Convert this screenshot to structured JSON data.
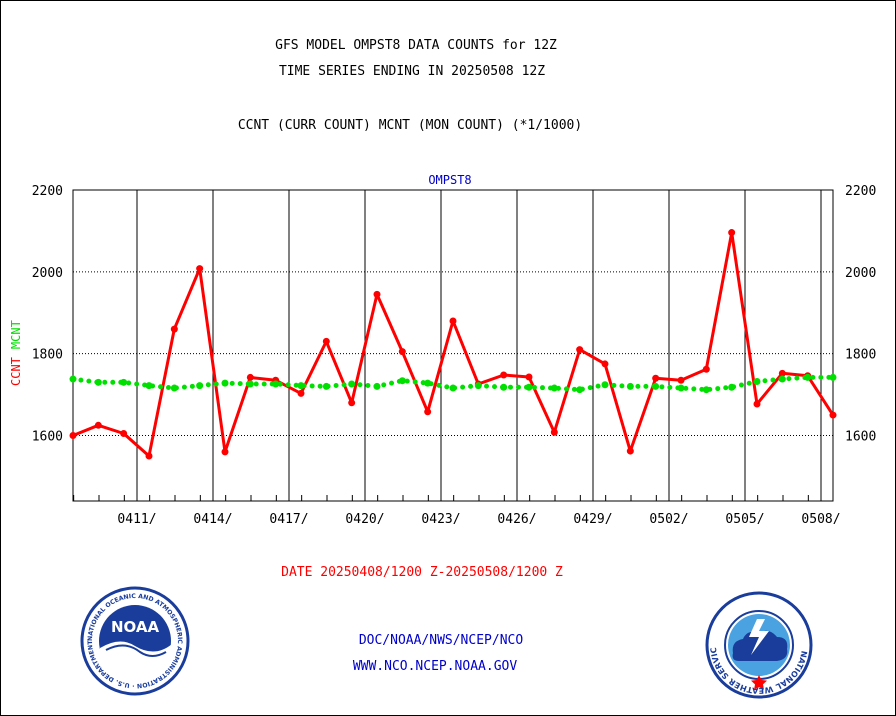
{
  "header": {
    "title_line1": "GFS MODEL OMPST8 DATA COUNTS for 12Z",
    "title_line2": "TIME SERIES ENDING IN 20250508 12Z",
    "subtitle": "CCNT (CURR COUNT) MCNT (MON COUNT) (*1/1000)"
  },
  "footer": {
    "date_range": "DATE 20250408/1200 Z-20250508/1200 Z",
    "org_line": "DOC/NOAA/NWS/NCEP/NCO",
    "url_line": "WWW.NCO.NCEP.NOAA.GOV"
  },
  "logos": {
    "noaa": {
      "center_text": "NOAA",
      "ring_text": "NATIONAL OCEANIC AND ATMOSPHERIC ADMINISTRATION · U.S. DEPARTMENT OF COMMERCE ·"
    },
    "nws": {
      "ring_text": "NATIONAL WEATHER SERVICE"
    }
  },
  "colors": {
    "ccnt": "#ff0000",
    "mcnt": "#00e000",
    "dataset_label": "#0000cc",
    "footer_text": "#0000cc",
    "date_text": "#ff0000"
  },
  "chart_data": {
    "type": "line",
    "title": "OMPST8",
    "ylabel_left": [
      "CCNT",
      "MCNT"
    ],
    "ylim": [
      1440,
      2200
    ],
    "yticks": [
      1600,
      1800,
      2000,
      2200
    ],
    "xlim": [
      0,
      30
    ],
    "xticks": [
      {
        "x": 3,
        "label": "0411/"
      },
      {
        "x": 6,
        "label": "0414/"
      },
      {
        "x": 9,
        "label": "0417/"
      },
      {
        "x": 12,
        "label": "0420/"
      },
      {
        "x": 15,
        "label": "0423/"
      },
      {
        "x": 18,
        "label": "0426/"
      },
      {
        "x": 21,
        "label": "0429/"
      },
      {
        "x": 24,
        "label": "0502/"
      },
      {
        "x": 27,
        "label": "0505/"
      },
      {
        "x": 30,
        "label": "0508/"
      }
    ],
    "grid": true,
    "series": [
      {
        "name": "CCNT",
        "style": "solid",
        "values": [
          1600,
          1625,
          1605,
          1550,
          1860,
          2008,
          1560,
          1742,
          1735,
          1703,
          1830,
          1680,
          1945,
          1805,
          1658,
          1880,
          1726,
          1748,
          1743,
          1608,
          1810,
          1775,
          1562,
          1740,
          1735,
          1762,
          2096,
          1677,
          1752,
          1746,
          1650
        ]
      },
      {
        "name": "MCNT",
        "style": "dotted",
        "values": [
          1738,
          1730,
          1730,
          1722,
          1716,
          1722,
          1728,
          1726,
          1726,
          1722,
          1720,
          1726,
          1720,
          1734,
          1728,
          1716,
          1722,
          1718,
          1718,
          1716,
          1712,
          1724,
          1720,
          1720,
          1716,
          1712,
          1718,
          1732,
          1738,
          1742,
          1742
        ]
      }
    ]
  }
}
